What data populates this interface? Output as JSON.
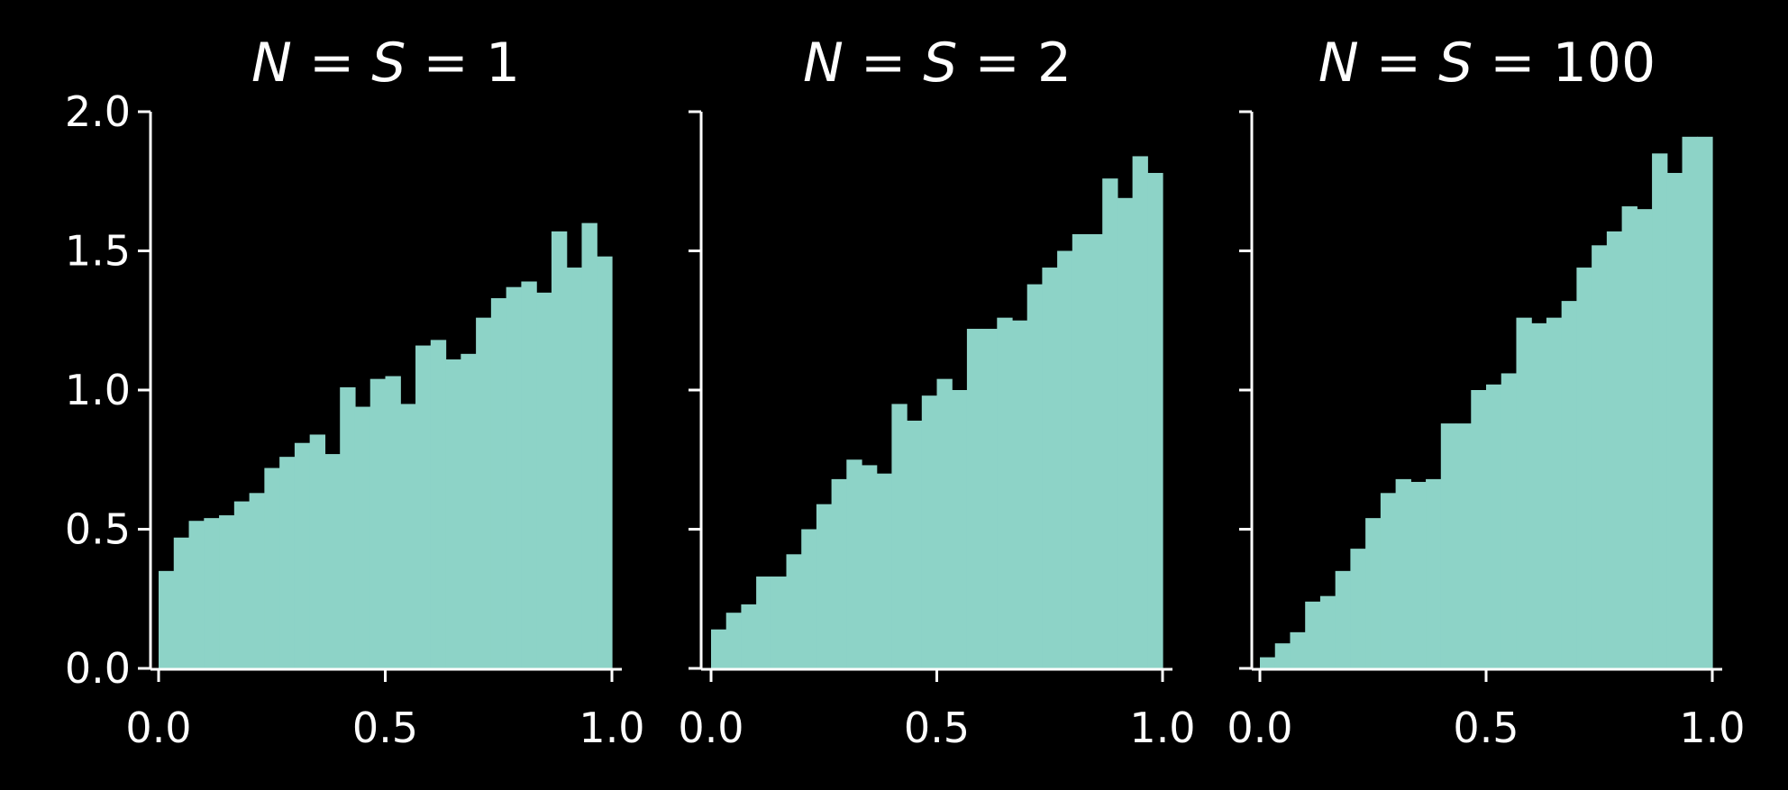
{
  "colors": {
    "background": "#000000",
    "bars": "#8dd3c7",
    "axes": "#ffffff"
  },
  "chart_data": [
    {
      "type": "bar",
      "title": {
        "n_label": "N",
        "s_label": "S",
        "eq1": " = ",
        "eq2": " = ",
        "value": "1"
      },
      "xlim": [
        0,
        1
      ],
      "ylim": [
        0,
        2.0
      ],
      "xticks": [
        "0.0",
        "0.5",
        "1.0"
      ],
      "yticks": [
        "0.0",
        "0.5",
        "1.0",
        "1.5",
        "2.0"
      ],
      "bin_count": 30,
      "values": [
        0.35,
        0.47,
        0.53,
        0.54,
        0.55,
        0.6,
        0.63,
        0.72,
        0.76,
        0.81,
        0.84,
        0.77,
        1.01,
        0.94,
        1.04,
        1.05,
        0.95,
        1.16,
        1.18,
        1.11,
        1.13,
        1.26,
        1.33,
        1.37,
        1.39,
        1.35,
        1.57,
        1.44,
        1.6,
        1.48
      ]
    },
    {
      "type": "bar",
      "title": {
        "n_label": "N",
        "s_label": "S",
        "eq1": " = ",
        "eq2": " = ",
        "value": "2"
      },
      "xlim": [
        0,
        1
      ],
      "ylim": [
        0,
        2.0
      ],
      "xticks": [
        "0.0",
        "0.5",
        "1.0"
      ],
      "yticks": [
        "0.0",
        "0.5",
        "1.0",
        "1.5",
        "2.0"
      ],
      "bin_count": 30,
      "values": [
        0.14,
        0.2,
        0.23,
        0.33,
        0.33,
        0.41,
        0.5,
        0.59,
        0.68,
        0.75,
        0.73,
        0.7,
        0.95,
        0.89,
        0.98,
        1.04,
        1.0,
        1.22,
        1.22,
        1.26,
        1.25,
        1.38,
        1.44,
        1.5,
        1.56,
        1.56,
        1.76,
        1.69,
        1.84,
        1.78
      ]
    },
    {
      "type": "bar",
      "title": {
        "n_label": "N",
        "s_label": "S",
        "eq1": " = ",
        "eq2": " = ",
        "value": "100"
      },
      "xlim": [
        0,
        1
      ],
      "ylim": [
        0,
        2.0
      ],
      "xticks": [
        "0.0",
        "0.5",
        "1.0"
      ],
      "yticks": [
        "0.0",
        "0.5",
        "1.0",
        "1.5",
        "2.0"
      ],
      "bin_count": 30,
      "values": [
        0.04,
        0.09,
        0.13,
        0.24,
        0.26,
        0.35,
        0.43,
        0.54,
        0.63,
        0.68,
        0.67,
        0.68,
        0.88,
        0.88,
        1.0,
        1.02,
        1.06,
        1.26,
        1.24,
        1.26,
        1.32,
        1.44,
        1.52,
        1.57,
        1.66,
        1.65,
        1.85,
        1.78,
        1.91,
        1.91
      ]
    }
  ]
}
